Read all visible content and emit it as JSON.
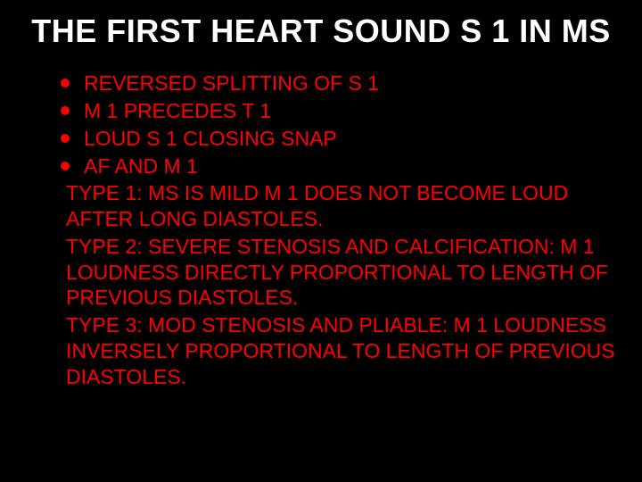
{
  "slide": {
    "title": "THE FIRST HEART SOUND S 1 IN MS",
    "background_color": "#000000",
    "title_color": "#ffffff",
    "title_fontsize": 36,
    "title_fontweight": "bold",
    "body_color": "#ff0000",
    "body_fontsize": 23,
    "bullet_color": "#ff0000",
    "bullets": [
      "REVERSED SPLITTING OF S 1",
      "M 1 PRECEDES T 1",
      "LOUD S 1 CLOSING SNAP",
      "AF AND M 1"
    ],
    "paragraphs": [
      "TYPE 1: MS IS MILD M 1 DOES NOT BECOME LOUD AFTER LONG DIASTOLES.",
      "TYPE 2: SEVERE STENOSIS AND CALCIFICATION: M 1 LOUDNESS  DIRECTLY PROPORTIONAL TO LENGTH OF PREVIOUS DIASTOLES.",
      "TYPE 3: MOD STENOSIS AND PLIABLE: M 1 LOUDNESS INVERSELY PROPORTIONAL TO LENGTH OF PREVIOUS DIASTOLES."
    ]
  }
}
